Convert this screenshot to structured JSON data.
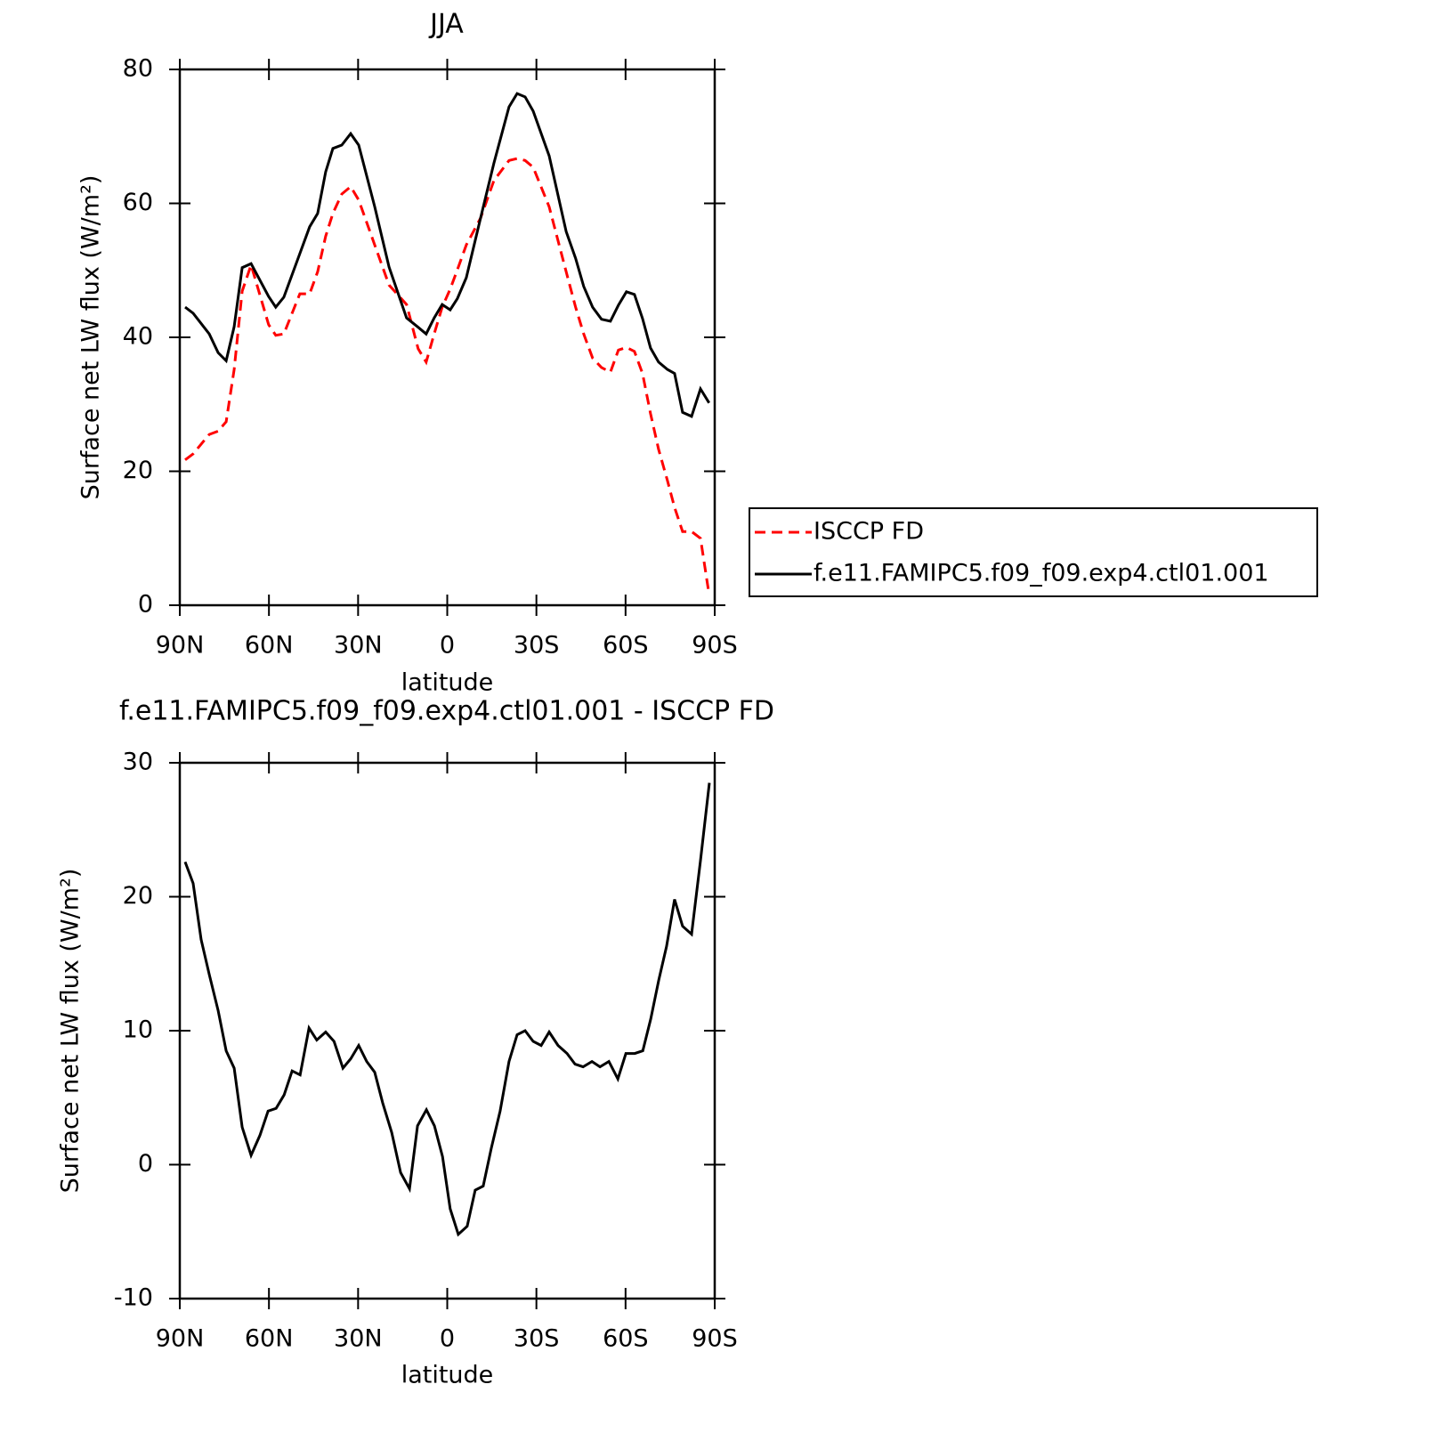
{
  "chart_data": [
    {
      "type": "line",
      "title": "JJA",
      "x_label": "latitude",
      "y_label": "Surface net LW flux (W/m²)",
      "x": [
        88.2,
        85.5,
        80.1,
        77.1,
        74.4,
        71.7,
        69.0,
        66.0,
        60.1,
        57.7,
        55.0,
        49.6,
        46.3,
        43.6,
        40.9,
        38.5,
        35.5,
        32.5,
        29.8,
        24.4,
        19.6,
        13.7,
        9.8,
        7.1,
        4.4,
        1.7,
        -1.0,
        -3.4,
        -6.4,
        -11.2,
        -15.7,
        -20.8,
        -23.5,
        -26.2,
        -28.9,
        -34.3,
        -40.0,
        -43.2,
        -45.9,
        -48.9,
        -51.9,
        -54.9,
        -57.6,
        -60.3,
        -63.0,
        -65.7,
        -68.4,
        -71.1,
        -74.1,
        -76.5,
        -79.2,
        -82.2,
        -85.2,
        -88.1
      ],
      "series": [
        {
          "name": "ISCCP FD",
          "color": "#ff0000",
          "dash": true,
          "values": [
            21.7,
            22.6,
            25.5,
            26.0,
            27.4,
            35.2,
            46.9,
            50.8,
            41.9,
            40.3,
            40.5,
            46.5,
            46.5,
            49.8,
            55.1,
            58.5,
            61.4,
            62.5,
            60.5,
            53.8,
            47.8,
            44.9,
            38.3,
            36.3,
            40.5,
            44.5,
            47.2,
            50.1,
            53.8,
            57.8,
            63.4,
            66.4,
            66.7,
            66.4,
            65.4,
            59.5,
            49.8,
            44.5,
            40.5,
            36.9,
            35.5,
            34.8,
            38.1,
            38.5,
            37.9,
            34.6,
            28.6,
            23.3,
            18.6,
            14.6,
            11.0,
            11.0,
            10.0,
            1.6
          ]
        },
        {
          "name": "f.e11.FAMIPC5.f09_f09.exp4.ctl01.001",
          "color": "#000000",
          "dash": false,
          "values": [
            44.5,
            43.6,
            40.5,
            37.7,
            36.5,
            41.6,
            50.4,
            51.0,
            46.1,
            44.5,
            46.0,
            52.5,
            56.5,
            58.5,
            64.7,
            68.2,
            68.7,
            70.4,
            68.7,
            59.5,
            50.5,
            42.9,
            41.5,
            40.5,
            42.9,
            44.9,
            44.1,
            45.8,
            48.9,
            57.8,
            66.0,
            74.4,
            76.4,
            75.9,
            73.8,
            67.1,
            55.8,
            51.8,
            47.6,
            44.5,
            42.7,
            42.4,
            44.8,
            46.8,
            46.4,
            42.8,
            38.4,
            36.3,
            35.2,
            34.6,
            28.8,
            28.2,
            32.3,
            30.2
          ]
        }
      ],
      "xlim": [
        90,
        -90
      ],
      "xticks": [
        {
          "value": 90,
          "label": "90N"
        },
        {
          "value": 60,
          "label": "60N"
        },
        {
          "value": 30,
          "label": "30N"
        },
        0,
        {
          "value": -30,
          "label": "30S"
        },
        {
          "value": -60,
          "label": "60S"
        },
        {
          "value": -90,
          "label": "90S"
        }
      ],
      "ylim": [
        0,
        80
      ],
      "yticks": [
        0,
        20,
        40,
        60,
        80
      ],
      "legend": "right"
    },
    {
      "type": "line",
      "title": "f.e11.FAMIPC5.f09_f09.exp4.ctl01.001 - ISCCP FD",
      "x_label": "latitude",
      "y_label": "Surface net LW flux (W/m²)",
      "x": [
        88.2,
        85.5,
        82.8,
        80.1,
        77.1,
        74.4,
        71.7,
        69.0,
        66.0,
        63.0,
        60.3,
        57.6,
        54.9,
        52.2,
        49.5,
        46.5,
        43.9,
        40.9,
        38.1,
        35.1,
        32.5,
        29.8,
        27.1,
        24.4,
        21.7,
        18.7,
        15.7,
        12.7,
        10.0,
        7.0,
        4.3,
        1.6,
        -1.0,
        -3.7,
        -6.7,
        -9.4,
        -12.1,
        -14.8,
        -17.8,
        -20.8,
        -23.5,
        -26.2,
        -28.9,
        -31.6,
        -34.3,
        -37.3,
        -40.3,
        -43.0,
        -45.7,
        -48.7,
        -51.4,
        -54.4,
        -57.4,
        -60.1,
        -63.1,
        -65.8,
        -68.5,
        -71.2,
        -73.8,
        -76.5,
        -79.2,
        -82.2,
        -85.2,
        -88.2
      ],
      "series": [
        {
          "color": "#000000",
          "dash": false,
          "values": [
            22.6,
            21.0,
            16.8,
            14.2,
            11.5,
            8.5,
            7.2,
            2.8,
            0.7,
            2.2,
            4.0,
            4.2,
            5.2,
            7.0,
            6.7,
            10.2,
            9.3,
            9.9,
            9.2,
            7.2,
            7.9,
            8.9,
            7.7,
            6.9,
            4.6,
            2.4,
            -0.6,
            -1.8,
            2.9,
            4.1,
            2.9,
            0.6,
            -3.3,
            -5.2,
            -4.6,
            -1.9,
            -1.6,
            1.2,
            4.0,
            7.7,
            9.7,
            10.0,
            9.2,
            8.9,
            9.9,
            8.9,
            8.3,
            7.5,
            7.3,
            7.7,
            7.3,
            7.7,
            6.4,
            8.3,
            8.3,
            8.5,
            10.9,
            13.8,
            16.3,
            19.8,
            17.8,
            17.2,
            22.7,
            28.5
          ]
        }
      ],
      "xlim": [
        90,
        -90
      ],
      "xticks": [
        {
          "value": 90,
          "label": "90N"
        },
        {
          "value": 60,
          "label": "60N"
        },
        {
          "value": 30,
          "label": "30N"
        },
        0,
        {
          "value": -30,
          "label": "30S"
        },
        {
          "value": -60,
          "label": "60S"
        },
        {
          "value": -90,
          "label": "90S"
        }
      ],
      "ylim": [
        -10,
        30
      ],
      "yticks": [
        -10,
        0,
        10,
        20,
        30
      ]
    }
  ]
}
